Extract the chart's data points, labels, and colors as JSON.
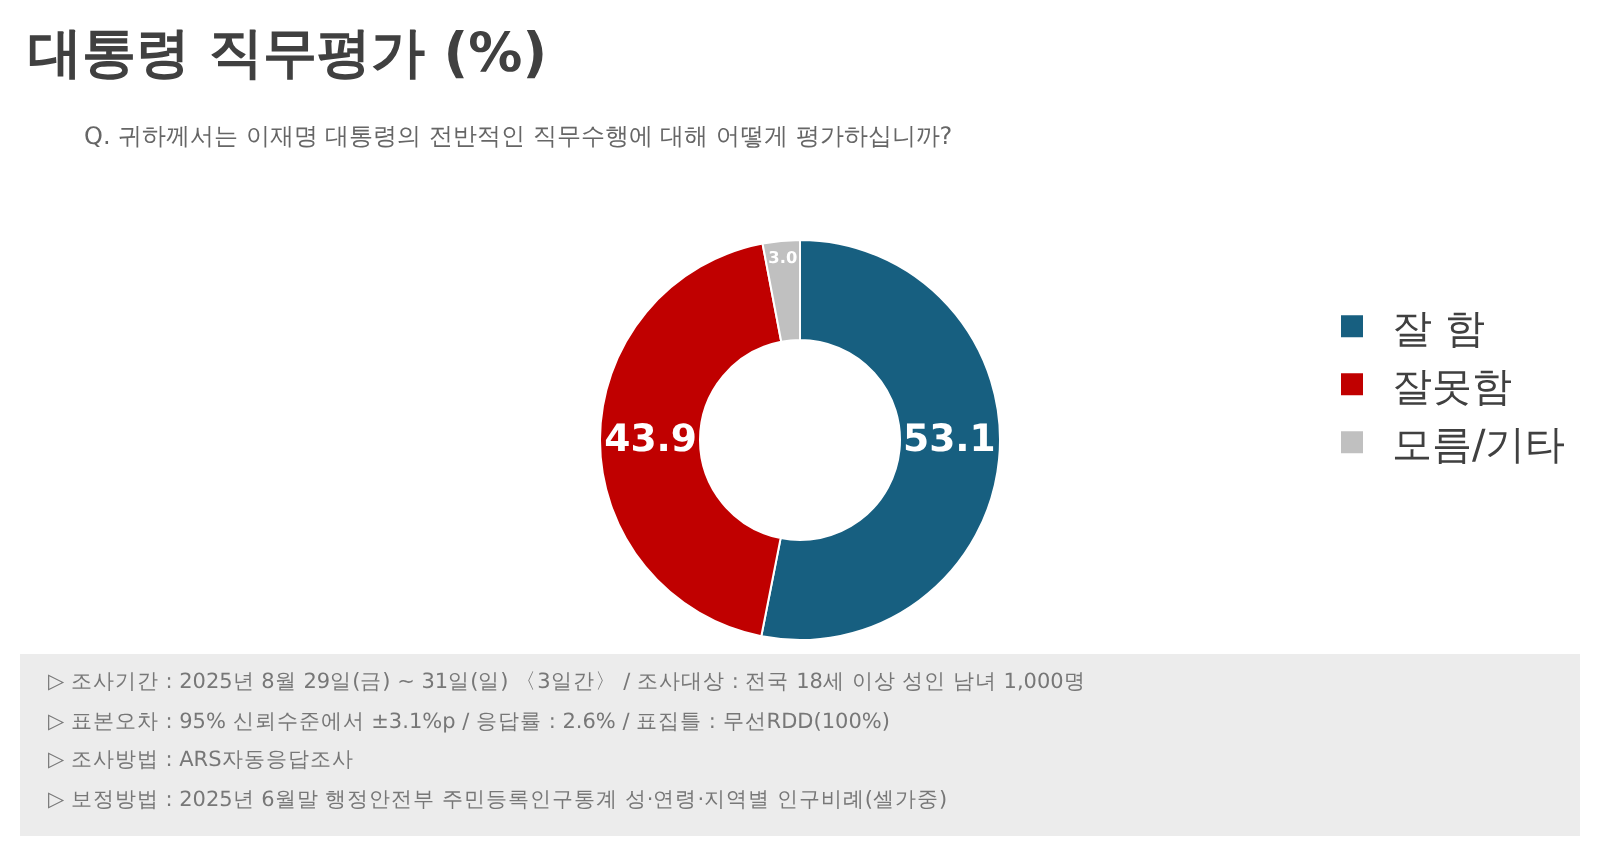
{
  "chart_data": {
    "type": "donut",
    "title": "대통령 직무평가 (%)",
    "subtitle": "Q. 귀하께서는 이재명 대통령의 전반적인 직무수행에 대해 어떻게 평가하십니까?",
    "categories": [
      "잘 함",
      "잘못함",
      "모름/기타"
    ],
    "values": [
      53.1,
      43.9,
      3.0
    ],
    "colors": [
      "#175f80",
      "#c00000",
      "#c0c0c0"
    ],
    "value_labels": [
      "53.1",
      "43.9",
      "3.0"
    ],
    "legend": "right",
    "annotations": [
      "▷ 조사기간 : 2025년 8월 29일(금) ~ 31일(일) 〈3일간〉 / 조사대상 : 전국 18세 이상 성인 남녀 1,000명",
      "▷ 표본오차 : 95% 신뢰수준에서 ±3.1%p / 응답률 : 2.6% / 표집틀 : 무선RDD(100%)",
      "▷ 조사방법 : ARS자동응답조사",
      "▷ 보정방법 : 2025년 6월말 행정안전부 주민등록인구통계 성·연령·지역별 인구비례(셀가중)"
    ]
  }
}
